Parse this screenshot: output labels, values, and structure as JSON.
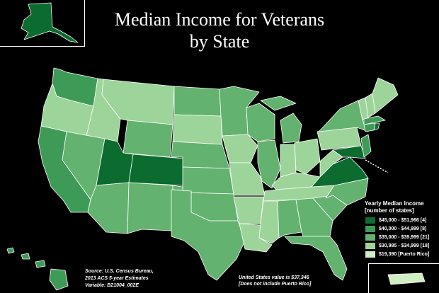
{
  "title_line1": "Median Income for Veterans",
  "title_line2": "by State",
  "legend": {
    "title": "Yearly Median Income",
    "subtitle": "[number of states]",
    "items": [
      {
        "label": "$45,000 - $51,966 [4]",
        "color": "#0c6b2f"
      },
      {
        "label": "$40,000 - $44,999 [8]",
        "color": "#3e9b57"
      },
      {
        "label": "$35,000 - $39,999 [21]",
        "color": "#63b26f"
      },
      {
        "label": "$30,985 - $34,999 [18]",
        "color": "#9dd49a"
      },
      {
        "label": "$19,390 [Puerto Rico]",
        "color": "#cfeec4"
      }
    ]
  },
  "source": {
    "line1": "Source: U.S. Census Bureau,",
    "line2": "2013 ACS 5-year Estimates",
    "line3": "Variable: B21004_002E"
  },
  "us_note": {
    "line1": "United States value is $37,346",
    "line2": "[Does not include Puerto Rico]"
  },
  "colors": {
    "tier1": "#0c6b2f",
    "tier2": "#3e9b57",
    "tier3": "#63b26f",
    "tier4": "#9dd49a",
    "tier5": "#cfeec4",
    "background": "#000000",
    "borders": "#ffffff"
  }
}
